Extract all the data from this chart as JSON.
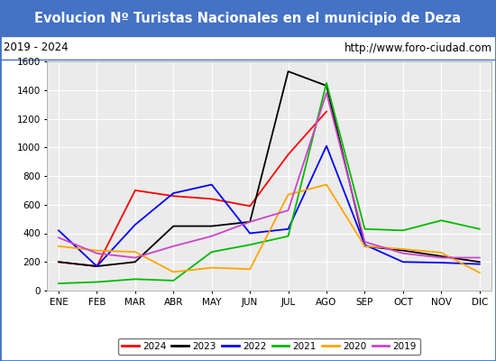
{
  "title": "Evolucion Nº Turistas Nacionales en el municipio de Deza",
  "subtitle_left": "2019 - 2024",
  "subtitle_right": "http://www.foro-ciudad.com",
  "months": [
    "ENE",
    "FEB",
    "MAR",
    "ABR",
    "MAY",
    "JUN",
    "JUL",
    "AGO",
    "SEP",
    "OCT",
    "NOV",
    "DIC"
  ],
  "series": {
    "2024": [
      200,
      170,
      700,
      660,
      640,
      590,
      950,
      1250,
      null,
      null,
      null,
      null
    ],
    "2023": [
      200,
      170,
      200,
      450,
      450,
      480,
      1530,
      1430,
      310,
      280,
      240,
      200
    ],
    "2022": [
      420,
      170,
      460,
      680,
      740,
      400,
      430,
      1010,
      320,
      200,
      195,
      185
    ],
    "2021": [
      50,
      60,
      80,
      70,
      270,
      320,
      380,
      1450,
      430,
      420,
      490,
      430
    ],
    "2020": [
      310,
      280,
      270,
      130,
      160,
      150,
      670,
      740,
      310,
      290,
      265,
      125
    ],
    "2019": [
      370,
      260,
      230,
      310,
      380,
      480,
      560,
      1380,
      340,
      260,
      230,
      230
    ]
  },
  "colors": {
    "2024": "#ff0000",
    "2023": "#000000",
    "2022": "#0000ff",
    "2021": "#00bb00",
    "2020": "#ffa500",
    "2019": "#cc44cc"
  },
  "ylim": [
    0,
    1600
  ],
  "yticks": [
    0,
    200,
    400,
    600,
    800,
    1000,
    1200,
    1400,
    1600
  ],
  "title_bg_color": "#4472c4",
  "title_text_color": "#ffffff",
  "plot_bg_color": "#ebebeb",
  "grid_color": "#ffffff",
  "border_color": "#4472c4",
  "fig_width": 5.5,
  "fig_height": 4.0,
  "dpi": 100
}
